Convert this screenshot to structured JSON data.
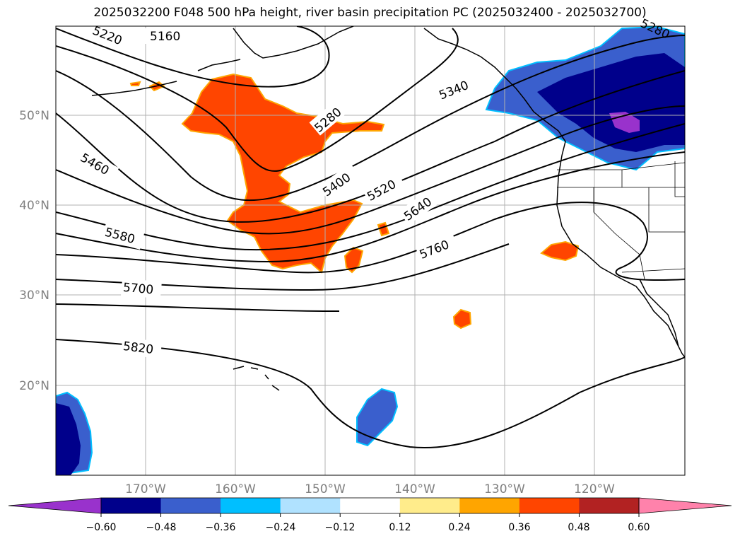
{
  "title": "2025032200 F048 500 hPa height, river basin precipitation PC (2025032400 - 2025032700)",
  "map": {
    "lat_labels": [
      "50°N",
      "40°N",
      "30°N",
      "20°N"
    ],
    "lon_labels": [
      "170°W",
      "160°W",
      "150°W",
      "140°W",
      "130°W",
      "120°W"
    ],
    "contour_labels": [
      "5160",
      "5220",
      "5280",
      "5280",
      "5340",
      "5400",
      "5460",
      "5520",
      "5580",
      "5640",
      "5700",
      "5760",
      "5820"
    ]
  },
  "colorbar": {
    "ticks": [
      "−0.60",
      "−0.48",
      "−0.36",
      "−0.24",
      "−0.12",
      "0.12",
      "0.24",
      "0.36",
      "0.48",
      "0.60"
    ],
    "colors": [
      "#9932cc",
      "#00008b",
      "#3a5fcd",
      "#00bfff",
      "#b0e2ff",
      "#ffffff",
      "#ffec8b",
      "#ffa500",
      "#ff4500",
      "#b22222",
      "#ff82ab"
    ]
  },
  "colors": {
    "positive_anomaly": "#ff4500",
    "negative_anomaly": "#3a5fcd",
    "strong_negative": "#00008b",
    "grid": "#b0b0b0",
    "contour": "#000000"
  }
}
